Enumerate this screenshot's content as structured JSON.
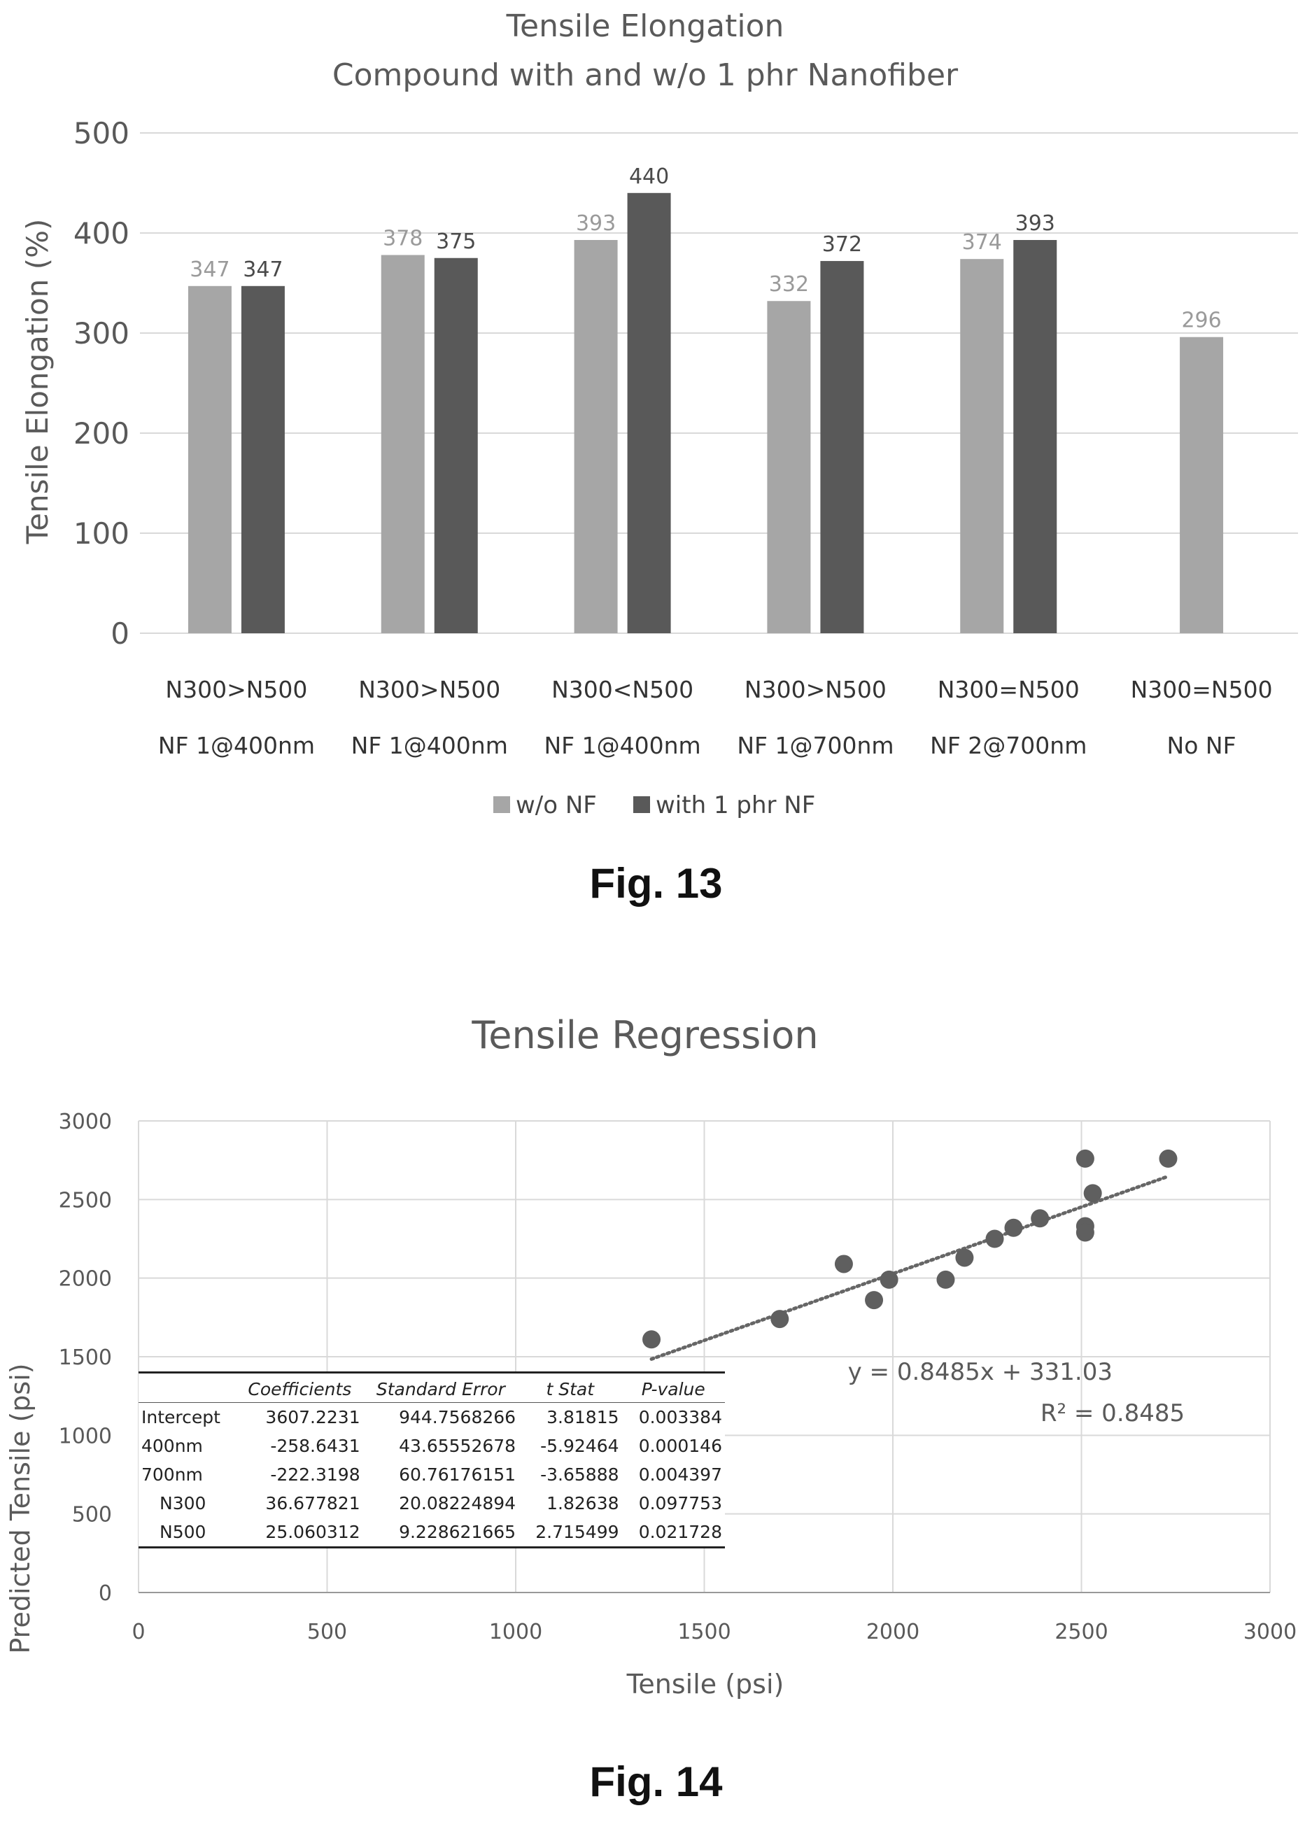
{
  "chart_data": [
    {
      "type": "bar",
      "title": "Tensile Elongation",
      "subtitle": "Compound with and w/o 1 phr Nanofiber",
      "ylabel": "Tensile Elongation (%)",
      "xlabel": "",
      "ylim": [
        0,
        500
      ],
      "yticks": [
        0,
        100,
        200,
        300,
        400,
        500
      ],
      "grid": true,
      "legend_position": "bottom",
      "categories": [
        [
          "N300>N500",
          "NF 1@400nm"
        ],
        [
          "N300>N500",
          "NF 1@400nm"
        ],
        [
          "N300<N500",
          "NF 1@400nm"
        ],
        [
          "N300>N500",
          "NF 1@700nm"
        ],
        [
          "N300=N500",
          "NF 2@700nm"
        ],
        [
          "N300=N500",
          "No NF"
        ]
      ],
      "series": [
        {
          "name": "w/o NF",
          "color": "#a6a6a6",
          "label_color": "#9a9a9a",
          "values": [
            347,
            378,
            393,
            332,
            374,
            296
          ]
        },
        {
          "name": "with 1 phr NF",
          "color": "#595959",
          "label_color": "#4a4a4a",
          "values": [
            347,
            375,
            440,
            372,
            393,
            null
          ]
        }
      ],
      "caption": "Fig. 13"
    },
    {
      "type": "scatter",
      "title": "Tensile Regression",
      "xlabel": "Tensile (psi)",
      "ylabel": "Predicted Tensile (psi)",
      "xlim": [
        0,
        3000
      ],
      "ylim": [
        0,
        3000
      ],
      "xticks": [
        0,
        500,
        1000,
        1500,
        2000,
        2500,
        3000
      ],
      "yticks": [
        0,
        500,
        1000,
        1500,
        2000,
        2500,
        3000
      ],
      "grid": true,
      "point_color": "#5f5f5f",
      "points": [
        [
          1360,
          1610
        ],
        [
          1700,
          1740
        ],
        [
          1870,
          2090
        ],
        [
          1950,
          1860
        ],
        [
          1990,
          1990
        ],
        [
          2140,
          1990
        ],
        [
          2190,
          2130
        ],
        [
          2270,
          2250
        ],
        [
          2320,
          2320
        ],
        [
          2390,
          2380
        ],
        [
          2510,
          2760
        ],
        [
          2510,
          2330
        ],
        [
          2510,
          2290
        ],
        [
          2530,
          2540
        ],
        [
          2730,
          2760
        ]
      ],
      "trendline": {
        "equation": "y = 0.8485x + 331.03",
        "r2": "R² = 0.8485",
        "slope": 0.8485,
        "intercept": 331.03,
        "x_range": [
          1360,
          2730
        ],
        "style": "dotted"
      },
      "caption": "Fig. 14"
    }
  ],
  "regression_table": {
    "headers": [
      "",
      "Coefficients",
      "Standard Error",
      "t Stat",
      "P-value"
    ],
    "rows": [
      [
        "Intercept",
        "3607.2231",
        "944.7568266",
        "3.81815",
        "0.003384"
      ],
      [
        "400nm",
        "-258.6431",
        "43.65552678",
        "-5.92464",
        "0.000146"
      ],
      [
        "700nm",
        "-222.3198",
        "60.76176151",
        "-3.65888",
        "0.004397"
      ],
      [
        "N300",
        "36.677821",
        "20.08224894",
        "1.82638",
        "0.097753"
      ],
      [
        "N500",
        "25.060312",
        "9.228621665",
        "2.715499",
        "0.021728"
      ]
    ]
  }
}
